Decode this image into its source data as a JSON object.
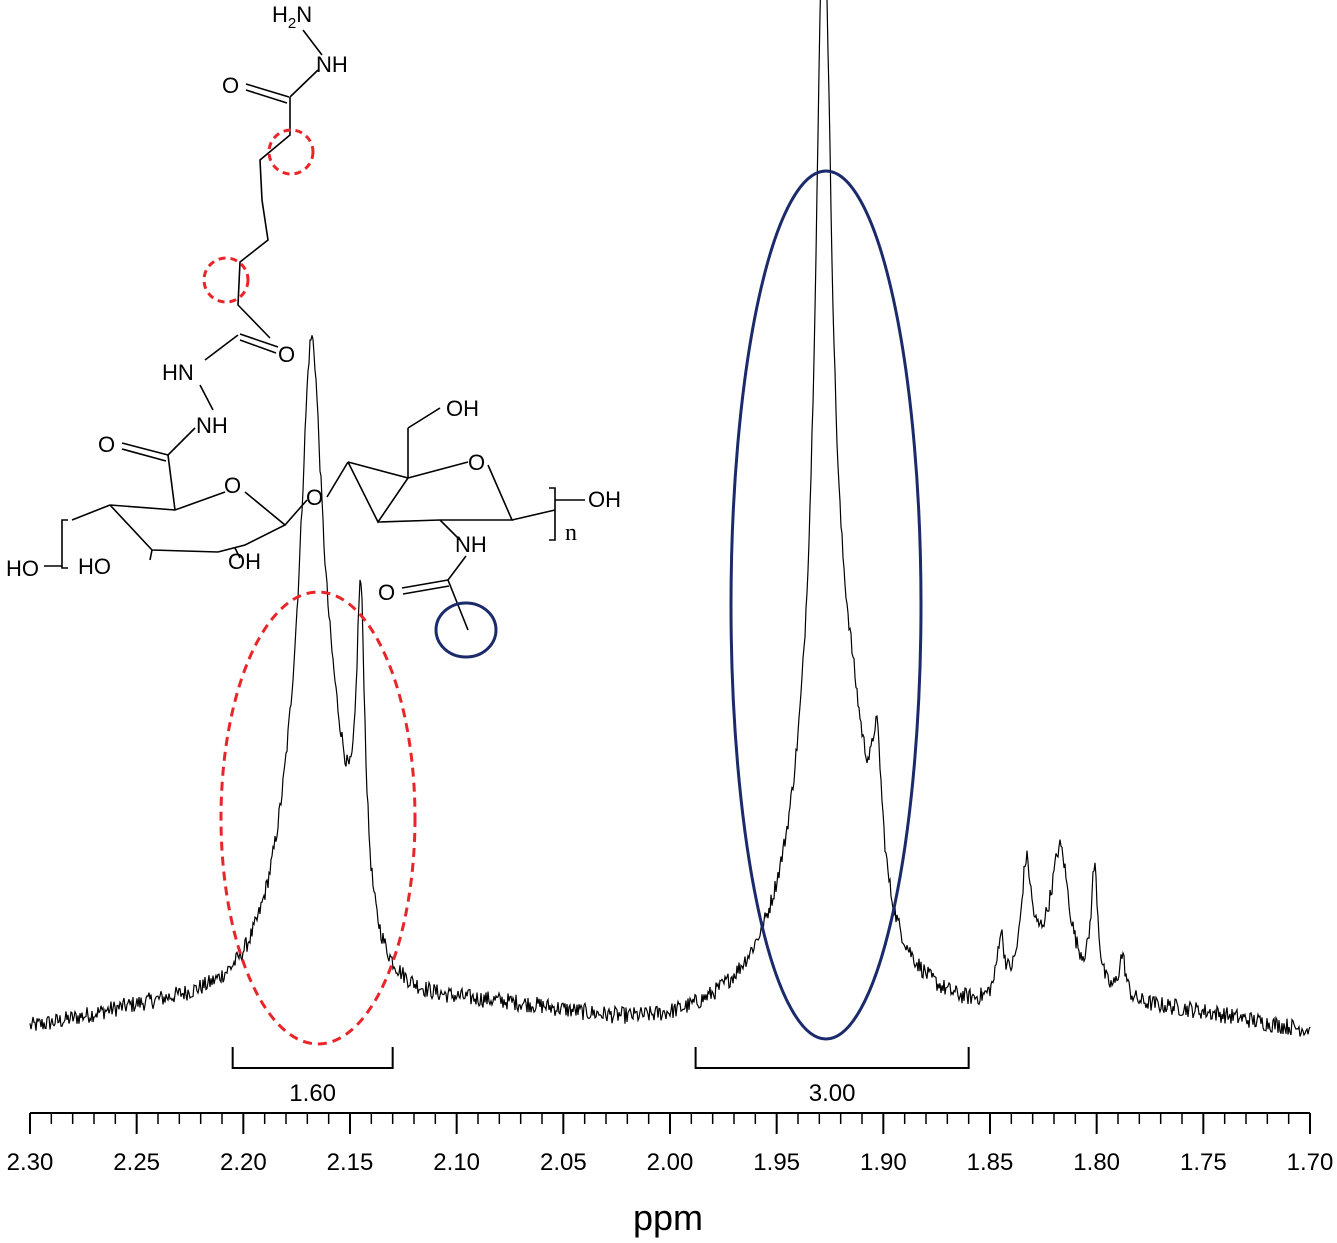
{
  "chart_data": {
    "type": "line",
    "xlabel": "ppm",
    "xlim": [
      2.3,
      1.7
    ],
    "x_reversed": true,
    "ticks": [
      "2.30",
      "2.25",
      "2.20",
      "2.15",
      "2.10",
      "2.05",
      "2.00",
      "1.95",
      "1.90",
      "1.85",
      "1.80",
      "1.75",
      "1.70"
    ],
    "tick_values": [
      2.3,
      2.25,
      2.2,
      2.15,
      2.1,
      2.05,
      2.0,
      1.95,
      1.9,
      1.85,
      1.8,
      1.75,
      1.7
    ],
    "baseline_noise": 0.04,
    "peaks": [
      {
        "center": 2.168,
        "height": 1.0,
        "width": 0.006
      },
      {
        "center": 2.172,
        "height": 0.45,
        "width": 0.016
      },
      {
        "center": 2.158,
        "height": 0.32,
        "width": 0.012
      },
      {
        "center": 2.145,
        "height": 0.72,
        "width": 0.0025
      },
      {
        "center": 1.928,
        "height": 1.92,
        "width": 0.0045
      },
      {
        "center": 1.928,
        "height": 0.55,
        "width": 0.018
      },
      {
        "center": 1.915,
        "height": 0.28,
        "width": 0.01
      },
      {
        "center": 1.903,
        "height": 0.32,
        "width": 0.003
      },
      {
        "center": 1.845,
        "height": 0.14,
        "width": 0.002
      },
      {
        "center": 1.833,
        "height": 0.27,
        "width": 0.003
      },
      {
        "center": 1.817,
        "height": 0.28,
        "width": 0.005
      },
      {
        "center": 1.801,
        "height": 0.28,
        "width": 0.002
      },
      {
        "center": 1.822,
        "height": 0.12,
        "width": 0.015
      },
      {
        "center": 1.788,
        "height": 0.1,
        "width": 0.002
      }
    ],
    "integrals": [
      {
        "label": "1.60",
        "from": 2.205,
        "to": 2.13
      },
      {
        "label": "3.00",
        "from": 1.988,
        "to": 1.86
      }
    ],
    "highlights": [
      {
        "region": "red-dashed-ellipse",
        "center_ppm": 2.165,
        "color": "#e8262a",
        "style": "dashed"
      },
      {
        "region": "navy-ellipse",
        "center_ppm": 1.925,
        "color": "#1b2a6b",
        "style": "solid"
      }
    ]
  },
  "structure": {
    "labels": {
      "h2n": "H",
      "h2n_sub": "2",
      "h2n_n": "N",
      "nh_top": "NH",
      "o_top": "O",
      "o_mid": "O",
      "hn_mid": "HN",
      "nh_mid": "NH",
      "o_ring_carbonyl": "O",
      "oh_ch2": "OH",
      "o_ring1": "O",
      "o_ring2": "O",
      "o_glyco": "O",
      "oh_right": "OH",
      "n_repeat": "n",
      "ho_left": "HO",
      "ho_ring": "HO",
      "oh_ring": "OH",
      "nh_amide": "NH",
      "o_acetyl": "O"
    },
    "colors": {
      "red_marker": "#e8262a",
      "navy_marker": "#1b2a6b"
    }
  }
}
